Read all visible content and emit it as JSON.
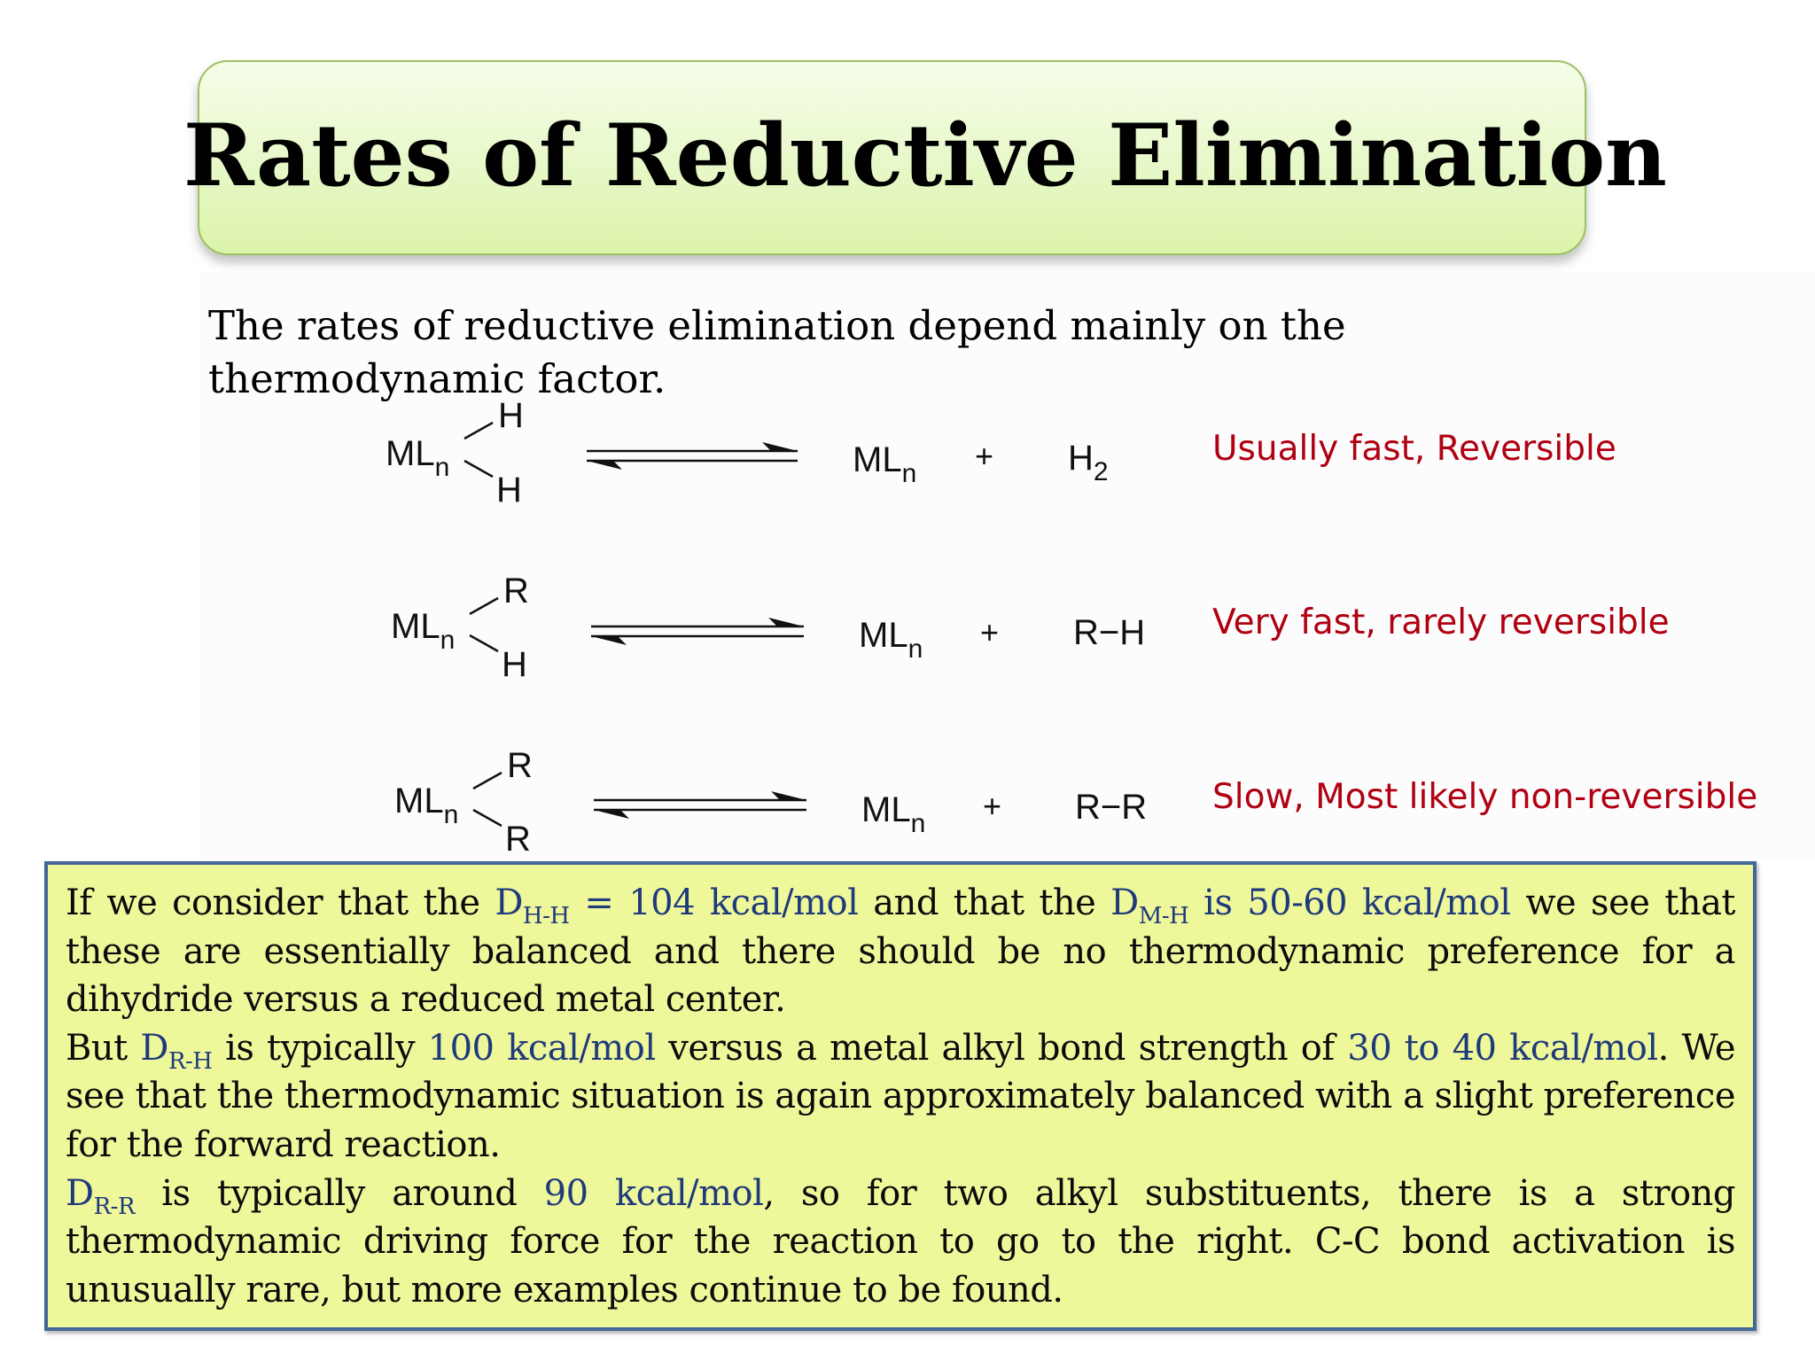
{
  "title": "Rates of Reductive Elimination",
  "intro": "The rates of reductive elimination depend mainly on the thermodynamic factor.",
  "reactions": [
    {
      "reactant_metal": "ML",
      "reactant_sub": "n",
      "ligand_top": "H",
      "ligand_bottom": "H",
      "product_metal": "ML",
      "product_sub": "n",
      "plus": "+",
      "product_main": "H",
      "product_main_sub": "2",
      "note": "Usually fast, Reversible"
    },
    {
      "reactant_metal": "ML",
      "reactant_sub": "n",
      "ligand_top": "R",
      "ligand_bottom": "H",
      "product_metal": "ML",
      "product_sub": "n",
      "plus": "+",
      "product_main": "R−H",
      "product_main_sub": "",
      "note": "Very fast, rarely reversible"
    },
    {
      "reactant_metal": "ML",
      "reactant_sub": "n",
      "ligand_top": "R",
      "ligand_bottom": "R",
      "product_metal": "ML",
      "product_sub": "n",
      "plus": "+",
      "product_main": "R−R",
      "product_main_sub": "",
      "note": "Slow, Most likely non-reversible"
    }
  ],
  "info": {
    "p1": {
      "a": "If we consider that the ",
      "d1": "D",
      "d1_sub": "H-H",
      "d1_val": " = 104 kcal/mol",
      "b": " and that the ",
      "d2": "D",
      "d2_sub": "M-H",
      "d2_val": " is 50-60 kcal/mol",
      "c": " we see that these are essentially balanced and there should be no thermodynamic preference for a dihydride versus a reduced metal center."
    },
    "p2": {
      "a": "But ",
      "d": "D",
      "d_sub": "R-H",
      "b": " is typically ",
      "v1": "100 kcal/mol",
      "c": " versus a metal alkyl bond strength of ",
      "v2": "30 to 40 kcal/mol",
      "d_text": ". We see that the thermodynamic situation is again approximately balanced with a slight preference for the forward reaction."
    },
    "p3": {
      "d": "D",
      "d_sub": "R-R",
      "a": " is typically around ",
      "v": "90 kcal/mol",
      "b": ", so for two alkyl substituents, there is a strong thermodynamic driving force for the reaction to go to the right. C-C bond activation is unusually rare, but more examples continue to be found."
    }
  }
}
